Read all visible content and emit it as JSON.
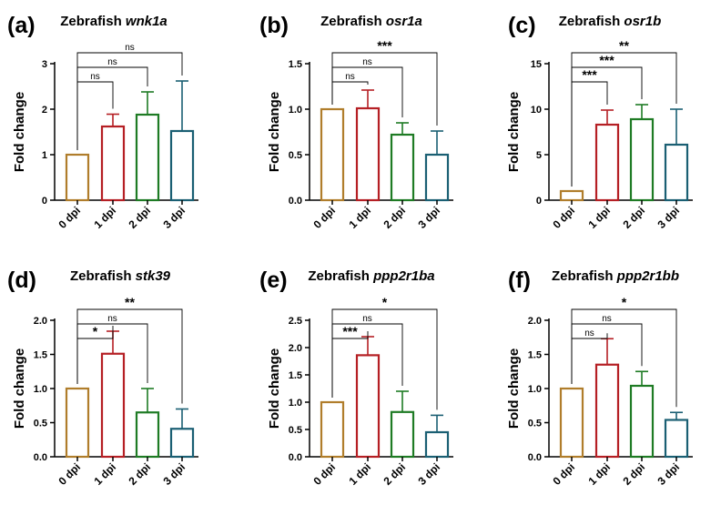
{
  "colors": {
    "0 dpi": "#b07d2b",
    "1 dpi": "#b51f24",
    "2 dpi": "#1e7b24",
    "3 dpi": "#1a5f73",
    "axis": "#000000",
    "bracket": "#000000"
  },
  "chart_data": [
    {
      "type": "bar",
      "panel_label": "(a)",
      "title_prefix": "Zebrafish ",
      "title_gene": "wnk1a",
      "ylabel": "Fold change",
      "categories": [
        "0 dpi",
        "1 dpi",
        "2 dpi",
        "3 dpi"
      ],
      "values": [
        1.0,
        1.62,
        1.88,
        1.52
      ],
      "errors": [
        0,
        0.27,
        0.5,
        1.1
      ],
      "ylim": [
        0,
        3
      ],
      "yticks": [
        0,
        1,
        2,
        3
      ],
      "ytick_labels": [
        "0",
        "1",
        "2",
        "3"
      ],
      "significance": [
        {
          "compare": [
            0,
            1
          ],
          "label": "ns"
        },
        {
          "compare": [
            0,
            2
          ],
          "label": "ns"
        },
        {
          "compare": [
            0,
            3
          ],
          "label": "ns"
        }
      ]
    },
    {
      "type": "bar",
      "panel_label": "(b)",
      "title_prefix": "Zebrafish ",
      "title_gene": "osr1a",
      "ylabel": "Fold change",
      "categories": [
        "0 dpi",
        "1 dpi",
        "2 dpi",
        "3 dpi"
      ],
      "values": [
        1.0,
        1.01,
        0.72,
        0.5
      ],
      "errors": [
        0,
        0.2,
        0.13,
        0.26
      ],
      "ylim": [
        0,
        1.5
      ],
      "yticks": [
        0,
        0.5,
        1.0,
        1.5
      ],
      "ytick_labels": [
        "0.0",
        "0.5",
        "1.0",
        "1.5"
      ],
      "significance": [
        {
          "compare": [
            0,
            1
          ],
          "label": "ns"
        },
        {
          "compare": [
            0,
            2
          ],
          "label": "ns"
        },
        {
          "compare": [
            0,
            3
          ],
          "label": "***"
        }
      ]
    },
    {
      "type": "bar",
      "panel_label": "(c)",
      "title_prefix": "Zebrafish ",
      "title_gene": "osr1b",
      "ylabel": "Fold change",
      "categories": [
        "0 dpi",
        "1 dpi",
        "2 dpi",
        "3 dpi"
      ],
      "values": [
        1.0,
        8.3,
        8.9,
        6.1
      ],
      "errors": [
        0,
        1.6,
        1.6,
        3.9
      ],
      "ylim": [
        0,
        15
      ],
      "yticks": [
        0,
        5,
        10,
        15
      ],
      "ytick_labels": [
        "0",
        "5",
        "10",
        "15"
      ],
      "significance": [
        {
          "compare": [
            0,
            1
          ],
          "label": "***"
        },
        {
          "compare": [
            0,
            2
          ],
          "label": "***"
        },
        {
          "compare": [
            0,
            3
          ],
          "label": "**"
        }
      ]
    },
    {
      "type": "bar",
      "panel_label": "(d)",
      "title_prefix": "Zebrafish ",
      "title_gene": "stk39",
      "ylabel": "Fold change",
      "categories": [
        "0 dpi",
        "1 dpi",
        "2 dpi",
        "3 dpi"
      ],
      "values": [
        1.0,
        1.51,
        0.65,
        0.41
      ],
      "errors": [
        0,
        0.33,
        0.35,
        0.29
      ],
      "ylim": [
        0,
        2.0
      ],
      "yticks": [
        0,
        0.5,
        1.0,
        1.5,
        2.0
      ],
      "ytick_labels": [
        "0.0",
        "0.5",
        "1.0",
        "1.5",
        "2.0"
      ],
      "significance": [
        {
          "compare": [
            0,
            1
          ],
          "label": "*"
        },
        {
          "compare": [
            0,
            2
          ],
          "label": "ns"
        },
        {
          "compare": [
            0,
            3
          ],
          "label": "**"
        }
      ]
    },
    {
      "type": "bar",
      "panel_label": "(e)",
      "title_prefix": "Zebrafish ",
      "title_gene": "ppp2r1ba",
      "ylabel": "Fold change",
      "categories": [
        "0 dpi",
        "1 dpi",
        "2 dpi",
        "3 dpi"
      ],
      "values": [
        1.0,
        1.86,
        0.82,
        0.45
      ],
      "errors": [
        0,
        0.34,
        0.38,
        0.31
      ],
      "ylim": [
        0,
        2.5
      ],
      "yticks": [
        0,
        0.5,
        1.0,
        1.5,
        2.0,
        2.5
      ],
      "ytick_labels": [
        "0.0",
        "0.5",
        "1.0",
        "1.5",
        "2.0",
        "2.5"
      ],
      "significance": [
        {
          "compare": [
            0,
            1
          ],
          "label": "***"
        },
        {
          "compare": [
            0,
            2
          ],
          "label": "ns"
        },
        {
          "compare": [
            0,
            3
          ],
          "label": "*"
        }
      ]
    },
    {
      "type": "bar",
      "panel_label": "(f)",
      "title_prefix": "Zebrafish ",
      "title_gene": "ppp2r1bb",
      "ylabel": "Fold change",
      "categories": [
        "0 dpi",
        "1 dpi",
        "2 dpi",
        "3 dpi"
      ],
      "values": [
        1.0,
        1.35,
        1.04,
        0.54
      ],
      "errors": [
        0,
        0.38,
        0.21,
        0.11
      ],
      "ylim": [
        0,
        2.0
      ],
      "yticks": [
        0,
        0.5,
        1.0,
        1.5,
        2.0
      ],
      "ytick_labels": [
        "0.0",
        "0.5",
        "1.0",
        "1.5",
        "2.0"
      ],
      "significance": [
        {
          "compare": [
            0,
            1
          ],
          "label": "ns"
        },
        {
          "compare": [
            0,
            2
          ],
          "label": "ns"
        },
        {
          "compare": [
            0,
            3
          ],
          "label": "*"
        }
      ]
    }
  ]
}
